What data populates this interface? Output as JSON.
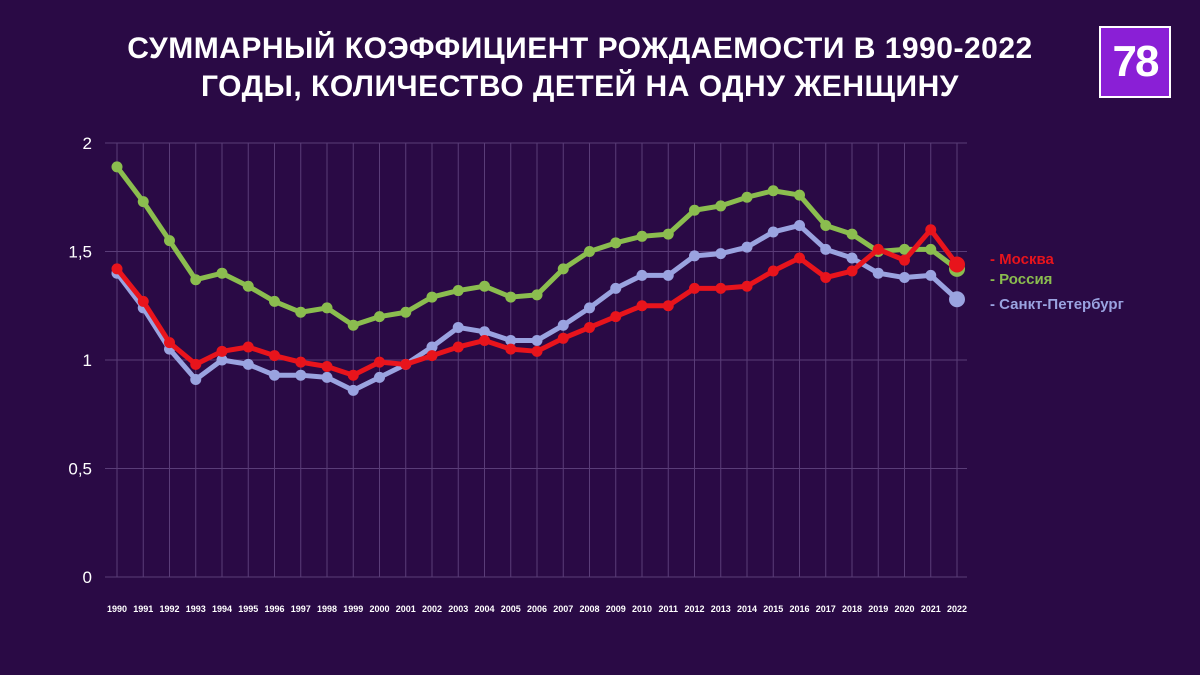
{
  "logo": {
    "text": "78"
  },
  "chart_data": {
    "type": "line",
    "title": [
      "СУММАРНЫЙ КОЭФФИЦИЕНТ РОЖДАЕМОСТИ В 1990-2022",
      "ГОДЫ, КОЛИЧЕСТВО ДЕТЕЙ НА ОДНУ ЖЕНЩИНУ"
    ],
    "xlabel": "",
    "ylabel": "",
    "x": [
      "1990",
      "1991",
      "1992",
      "1993",
      "1994",
      "1995",
      "1996",
      "1997",
      "1998",
      "1999",
      "2000",
      "2001",
      "2002",
      "2003",
      "2004",
      "2005",
      "2006",
      "2007",
      "2008",
      "2009",
      "2010",
      "2011",
      "2012",
      "2013",
      "2014",
      "2015",
      "2016",
      "2017",
      "2018",
      "2019",
      "2020",
      "2021",
      "2022"
    ],
    "ylim": [
      0,
      2
    ],
    "yticks": [
      0,
      0.5,
      1,
      1.5,
      2
    ],
    "ytick_labels": [
      "0",
      "0,5",
      "1",
      "1,5",
      "2"
    ],
    "grid": "vertical and horizontal",
    "legend_position": "right",
    "series": [
      {
        "name": "Россия",
        "legend_label": "- Россия",
        "color": "#8bbd4f",
        "values": [
          1.89,
          1.73,
          1.55,
          1.37,
          1.4,
          1.34,
          1.27,
          1.22,
          1.24,
          1.16,
          1.2,
          1.22,
          1.29,
          1.32,
          1.34,
          1.29,
          1.3,
          1.42,
          1.5,
          1.54,
          1.57,
          1.58,
          1.69,
          1.71,
          1.75,
          1.78,
          1.76,
          1.62,
          1.58,
          1.5,
          1.51,
          1.51,
          1.42
        ]
      },
      {
        "name": "Санкт-Петербург",
        "legend_label": "- Санкт-Петербург",
        "color": "#9aa3e0",
        "values": [
          1.4,
          1.24,
          1.05,
          0.91,
          1.0,
          0.98,
          0.93,
          0.93,
          0.92,
          0.86,
          0.92,
          0.98,
          1.06,
          1.15,
          1.13,
          1.09,
          1.09,
          1.16,
          1.24,
          1.33,
          1.39,
          1.39,
          1.48,
          1.49,
          1.52,
          1.59,
          1.62,
          1.51,
          1.47,
          1.4,
          1.38,
          1.39,
          1.28
        ]
      },
      {
        "name": "Москва",
        "legend_label": "- Москва",
        "color": "#e8141c",
        "values": [
          1.42,
          1.27,
          1.08,
          0.98,
          1.04,
          1.06,
          1.02,
          0.99,
          0.97,
          0.93,
          0.99,
          0.98,
          1.02,
          1.06,
          1.09,
          1.05,
          1.04,
          1.1,
          1.15,
          1.2,
          1.25,
          1.25,
          1.33,
          1.33,
          1.34,
          1.41,
          1.47,
          1.38,
          1.41,
          1.51,
          1.46,
          1.6,
          1.44
        ]
      }
    ]
  }
}
